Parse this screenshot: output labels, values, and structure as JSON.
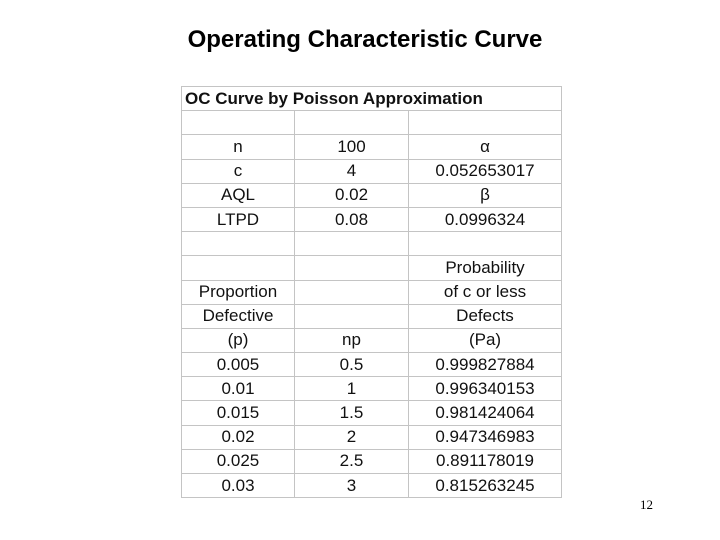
{
  "header": {
    "title": "Operating Characteristic Curve"
  },
  "table": {
    "title": "OC Curve by Poisson Approximation",
    "rows": [
      [
        null,
        null,
        null
      ],
      [
        "n",
        "100",
        "α"
      ],
      [
        "c",
        "4",
        "0.052653017"
      ],
      [
        "AQL",
        "0.02",
        "β"
      ],
      [
        "LTPD",
        "0.08",
        "0.0996324"
      ],
      [
        null,
        null,
        null
      ],
      [
        null,
        null,
        "Probability"
      ],
      [
        "Proportion",
        null,
        "of c or less"
      ],
      [
        "Defective",
        null,
        "Defects"
      ],
      [
        "(p)",
        "np",
        "(Pa)"
      ],
      [
        "0.005",
        "0.5",
        "0.999827884"
      ],
      [
        "0.01",
        "1",
        "0.996340153"
      ],
      [
        "0.015",
        "1.5",
        "0.981424064"
      ],
      [
        "0.02",
        "2",
        "0.947346983"
      ],
      [
        "0.025",
        "2.5",
        "0.891178019"
      ],
      [
        "0.03",
        "3",
        "0.815263245"
      ]
    ]
  },
  "footer": {
    "page_number": "12"
  }
}
